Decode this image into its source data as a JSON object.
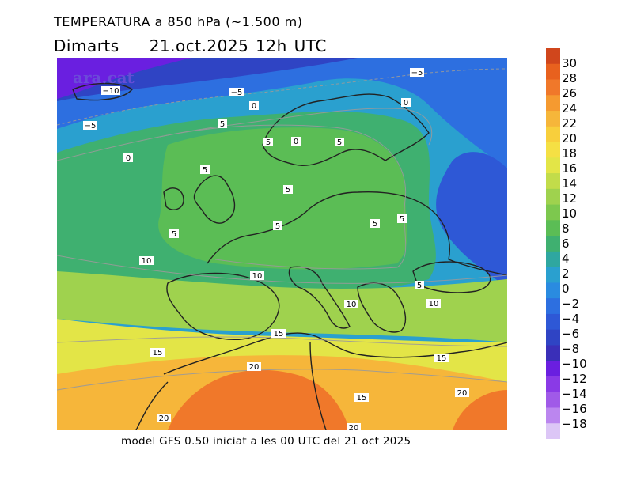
{
  "header": {
    "title": "TEMPERATURA a 850 hPa (~1.500 m)",
    "day": "Dimarts",
    "datetime": "21.oct.2025 12h UTC"
  },
  "footer": {
    "caption": "model GFS 0.50 iniciat a les 00 UTC del 21 oct 2025"
  },
  "logo": {
    "text": "ara.cat"
  },
  "colorbar": {
    "labels": [
      "30",
      "28",
      "26",
      "24",
      "22",
      "20",
      "18",
      "16",
      "14",
      "12",
      "10",
      "8",
      "6",
      "4",
      "2",
      "0",
      "−2",
      "−4",
      "−6",
      "−8",
      "−10",
      "−12",
      "−14",
      "−16",
      "−18"
    ],
    "colors": [
      "#d0461c",
      "#e8611e",
      "#f0782a",
      "#f59a30",
      "#f6b63a",
      "#f8cf3c",
      "#f5e044",
      "#e3e547",
      "#c2dc4a",
      "#9fd24e",
      "#7dc84e",
      "#5bbd55",
      "#3fb070",
      "#2fa7a0",
      "#2aa0cf",
      "#2a8be0",
      "#2d6fe0",
      "#2e58d6",
      "#2f44c4",
      "#3a2fb8",
      "#6a1fe0",
      "#8a3ae6",
      "#a05ae8",
      "#bb86ef",
      "#dcc6f6"
    ]
  },
  "map": {
    "contour_labels": [
      {
        "text": "−10"
      },
      {
        "text": "−5"
      },
      {
        "text": "−5"
      },
      {
        "text": "−5"
      },
      {
        "text": "0"
      },
      {
        "text": "0"
      },
      {
        "text": "0"
      },
      {
        "text": "0"
      },
      {
        "text": "5"
      },
      {
        "text": "5"
      },
      {
        "text": "5"
      },
      {
        "text": "5"
      },
      {
        "text": "5"
      },
      {
        "text": "5"
      },
      {
        "text": "5"
      },
      {
        "text": "5"
      },
      {
        "text": "5"
      },
      {
        "text": "10"
      },
      {
        "text": "10"
      },
      {
        "text": "10"
      },
      {
        "text": "10"
      },
      {
        "text": "5"
      },
      {
        "text": "15"
      },
      {
        "text": "15"
      },
      {
        "text": "15"
      },
      {
        "text": "15"
      },
      {
        "text": "20"
      },
      {
        "text": "20"
      },
      {
        "text": "20"
      },
      {
        "text": "20"
      }
    ]
  }
}
